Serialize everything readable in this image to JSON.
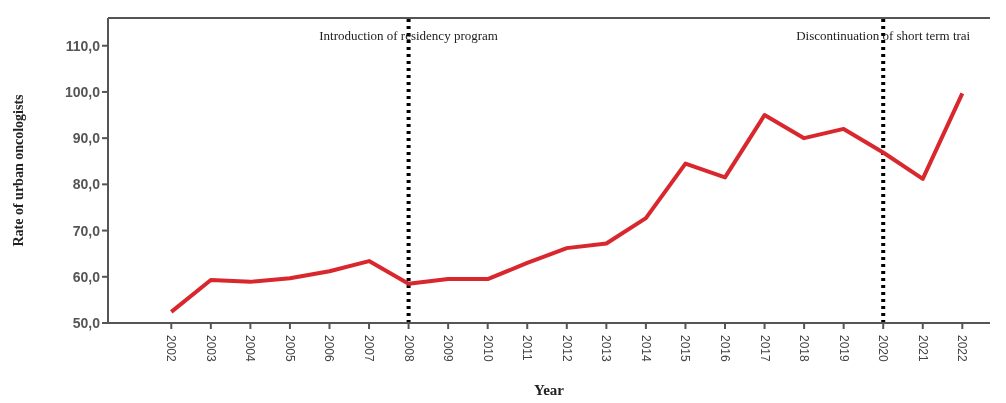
{
  "chart_data": {
    "type": "line",
    "xlabel": "Year",
    "ylabel": "Rate of urban oncologists",
    "categories": [
      "2002",
      "2003",
      "2004",
      "2005",
      "2006",
      "2007",
      "2008",
      "2009",
      "2010",
      "2011",
      "2012",
      "2013",
      "2014",
      "2015",
      "2016",
      "2017",
      "2018",
      "2019",
      "2020",
      "2021",
      "2022"
    ],
    "series": [
      {
        "color": "#d9272e",
        "values": [
          52.4,
          59.3,
          58.9,
          59.7,
          61.2,
          63.4,
          58.5,
          59.5,
          59.5,
          63,
          66.2,
          67.2,
          72.7,
          84.5,
          81.5,
          95,
          90,
          92,
          86.9,
          81.2,
          99.7
        ]
      }
    ],
    "ylim": [
      50,
      116
    ],
    "yticks": [
      {
        "value": 50,
        "label": "50,0"
      },
      {
        "value": 60,
        "label": "60,0"
      },
      {
        "value": 70,
        "label": "70,0"
      },
      {
        "value": 80,
        "label": "80,0"
      },
      {
        "value": 90,
        "label": "90,0"
      },
      {
        "value": 100,
        "label": "100,0"
      },
      {
        "value": 110,
        "label": "110,0"
      }
    ],
    "ref_lines": [
      {
        "axis": "x",
        "value": "2008",
        "label": "Introduction of residency program",
        "color": "#000000",
        "line_style": "dotted"
      },
      {
        "axis": "x",
        "value": "2020",
        "label": "Discontinuation of short term trai",
        "color": "#000000",
        "line_style": "dotted"
      }
    ],
    "grid": false,
    "legend": false,
    "marker": "none",
    "line_style": "solid"
  }
}
